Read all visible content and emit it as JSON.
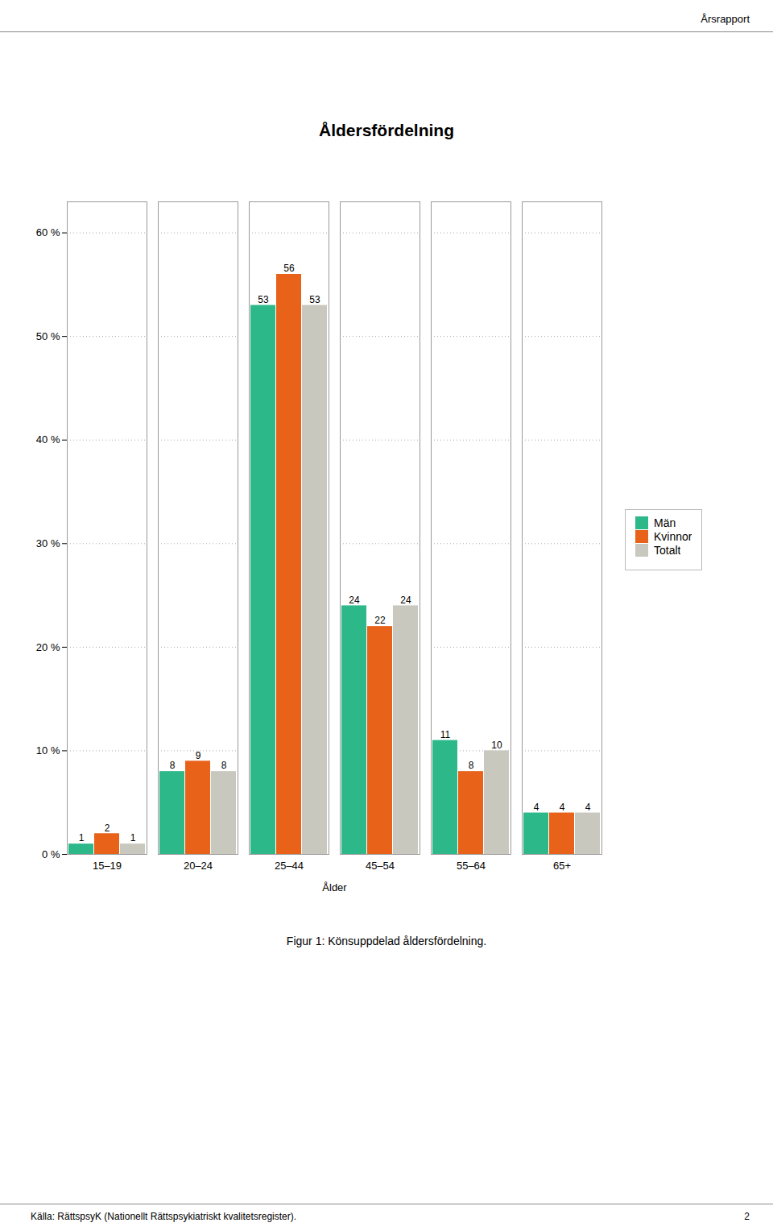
{
  "chart_data": {
    "type": "bar",
    "title": "Åldersfördelning",
    "header": "Årsrapport",
    "caption": "Figur 1: Könsuppdelad åldersfördelning.",
    "footer": "Källa: RättspsyK (Nationellt Rättspsykiatriskt kvalitetsregister).",
    "page": "2",
    "xlabel": "Ålder",
    "categories": [
      "15–19",
      "20–24",
      "25–44",
      "45–54",
      "55–64",
      "65+"
    ],
    "series": [
      {
        "name": "Män",
        "color": "#2db88a",
        "values": [
          1,
          8,
          53,
          24,
          11,
          4
        ]
      },
      {
        "name": "Kvinnor",
        "color": "#e8621a",
        "values": [
          2,
          9,
          56,
          22,
          8,
          4
        ]
      },
      {
        "name": "Totalt",
        "color": "#c8c8be",
        "values": [
          1,
          8,
          53,
          24,
          10,
          4
        ]
      }
    ],
    "ylim": [
      0,
      63
    ],
    "yticks": [
      {
        "value": 0,
        "label": "0 %"
      },
      {
        "value": 10,
        "label": "10 %"
      },
      {
        "value": 20,
        "label": "20 %"
      },
      {
        "value": 30,
        "label": "30 %"
      },
      {
        "value": 40,
        "label": "40 %"
      },
      {
        "value": 50,
        "label": "50 %"
      },
      {
        "value": 60,
        "label": "60 %"
      }
    ],
    "grid": true,
    "legend": "right",
    "data_labels": true
  }
}
